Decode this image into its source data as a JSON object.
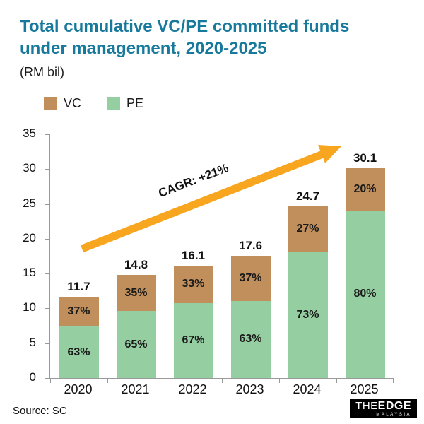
{
  "header": {
    "title_line1": "Total cumulative VC/PE committed funds",
    "title_line2": "under management, 2020-2025",
    "subtitle": "(RM bil)"
  },
  "legend": [
    {
      "label": "VC",
      "color": "#C08F5C"
    },
    {
      "label": "PE",
      "color": "#95CFA1"
    }
  ],
  "annotation": {
    "cagr_label": "CAGR: +21%"
  },
  "footer": {
    "source": "Source: SC",
    "logo_the": "THE",
    "logo_edge": "EDGE",
    "logo_sub": "MALAYSIA"
  },
  "colors": {
    "title": "#17799C",
    "vc": "#C08F5C",
    "pe": "#95CFA1",
    "arrow": "#F8A61F",
    "axis": "#999999"
  },
  "chart_data": {
    "type": "bar",
    "stacked": true,
    "title": "Total cumulative VC/PE committed funds under management, 2020-2025",
    "units": "RM bil",
    "categories": [
      "2020",
      "2021",
      "2022",
      "2023",
      "2024",
      "2025"
    ],
    "totals": [
      11.7,
      14.8,
      16.1,
      17.6,
      24.7,
      30.1
    ],
    "series": [
      {
        "name": "PE",
        "pct": [
          63,
          65,
          67,
          63,
          73,
          80
        ]
      },
      {
        "name": "VC",
        "pct": [
          37,
          35,
          33,
          37,
          27,
          20
        ]
      }
    ],
    "ylim": [
      0,
      35
    ],
    "yticks": [
      0,
      5,
      10,
      15,
      20,
      25,
      30,
      35
    ],
    "annotation": "CAGR: +21%",
    "legend_position": "top-left",
    "grid": false,
    "source": "SC"
  }
}
